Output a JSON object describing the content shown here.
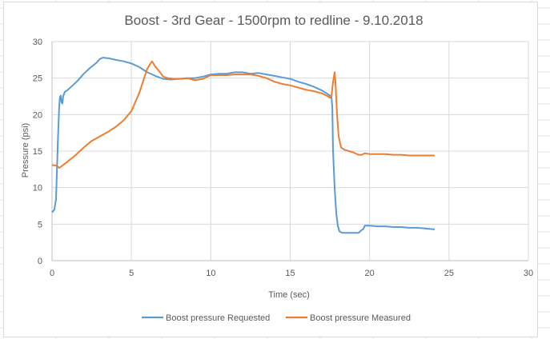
{
  "chart_data": {
    "type": "line",
    "title": "Boost - 3rd Gear - 1500rpm to redline - 9.10.2018",
    "xlabel": "Time (sec)",
    "ylabel": "Pressure (psi)",
    "xlim": [
      0,
      30
    ],
    "ylim": [
      0,
      30
    ],
    "x_ticks": [
      "0",
      "5",
      "10",
      "15",
      "20",
      "25",
      "30"
    ],
    "y_ticks": [
      "0",
      "5",
      "10",
      "15",
      "20",
      "25",
      "30"
    ],
    "grid": true,
    "legend_position": "bottom",
    "series": [
      {
        "name": "Boost pressure Requested",
        "color": "#5b9bd5",
        "points": [
          [
            0,
            6.6
          ],
          [
            0.15,
            7.0
          ],
          [
            0.25,
            8.5
          ],
          [
            0.32,
            13
          ],
          [
            0.38,
            17
          ],
          [
            0.45,
            21
          ],
          [
            0.5,
            22.4
          ],
          [
            0.55,
            22.6
          ],
          [
            0.6,
            21.7
          ],
          [
            0.65,
            21.5
          ],
          [
            0.7,
            22.5
          ],
          [
            0.8,
            23.1
          ],
          [
            1.0,
            23.4
          ],
          [
            1.3,
            24.0
          ],
          [
            1.6,
            24.6
          ],
          [
            2.0,
            25.6
          ],
          [
            2.4,
            26.4
          ],
          [
            2.8,
            27.1
          ],
          [
            3.0,
            27.6
          ],
          [
            3.2,
            27.8
          ],
          [
            3.6,
            27.7
          ],
          [
            4.0,
            27.5
          ],
          [
            4.5,
            27.3
          ],
          [
            5.0,
            27.0
          ],
          [
            5.5,
            26.5
          ],
          [
            6.0,
            25.8
          ],
          [
            6.5,
            25.3
          ],
          [
            7.0,
            24.9
          ],
          [
            7.5,
            24.8
          ],
          [
            8.0,
            24.9
          ],
          [
            8.5,
            25.0
          ],
          [
            9.0,
            25.0
          ],
          [
            9.5,
            25.2
          ],
          [
            10.0,
            25.5
          ],
          [
            10.5,
            25.6
          ],
          [
            11.0,
            25.6
          ],
          [
            11.5,
            25.8
          ],
          [
            12.0,
            25.8
          ],
          [
            12.5,
            25.6
          ],
          [
            13.0,
            25.7
          ],
          [
            13.5,
            25.5
          ],
          [
            14.0,
            25.3
          ],
          [
            14.5,
            25.1
          ],
          [
            15.0,
            24.9
          ],
          [
            15.5,
            24.5
          ],
          [
            16.0,
            24.2
          ],
          [
            16.5,
            23.8
          ],
          [
            17.0,
            23.3
          ],
          [
            17.3,
            22.9
          ],
          [
            17.5,
            22.6
          ],
          [
            17.6,
            22.3
          ],
          [
            17.65,
            21.0
          ],
          [
            17.7,
            15
          ],
          [
            17.8,
            10
          ],
          [
            17.9,
            6.5
          ],
          [
            18.0,
            4.8
          ],
          [
            18.1,
            4.0
          ],
          [
            18.3,
            3.8
          ],
          [
            18.8,
            3.8
          ],
          [
            19.3,
            3.8
          ],
          [
            19.5,
            4.2
          ],
          [
            19.6,
            4.3
          ],
          [
            19.7,
            4.8
          ],
          [
            20.0,
            4.8
          ],
          [
            20.5,
            4.7
          ],
          [
            21.0,
            4.7
          ],
          [
            21.5,
            4.6
          ],
          [
            22.0,
            4.6
          ],
          [
            22.5,
            4.5
          ],
          [
            23.0,
            4.5
          ],
          [
            23.5,
            4.4
          ],
          [
            24.0,
            4.3
          ],
          [
            24.1,
            4.3
          ]
        ]
      },
      {
        "name": "Boost pressure Measured",
        "color": "#ed7d31",
        "points": [
          [
            0,
            13.1
          ],
          [
            0.3,
            13.0
          ],
          [
            0.45,
            12.7
          ],
          [
            0.7,
            13.1
          ],
          [
            1.0,
            13.6
          ],
          [
            1.5,
            14.5
          ],
          [
            2.0,
            15.5
          ],
          [
            2.5,
            16.4
          ],
          [
            3.0,
            17.0
          ],
          [
            3.5,
            17.6
          ],
          [
            4.0,
            18.3
          ],
          [
            4.5,
            19.2
          ],
          [
            5.0,
            20.5
          ],
          [
            5.5,
            23.0
          ],
          [
            5.8,
            25.0
          ],
          [
            6.0,
            26.3
          ],
          [
            6.2,
            27.0
          ],
          [
            6.3,
            27.3
          ],
          [
            6.5,
            26.6
          ],
          [
            6.8,
            25.8
          ],
          [
            7.0,
            25.2
          ],
          [
            7.3,
            25.0
          ],
          [
            7.7,
            24.9
          ],
          [
            8.2,
            24.9
          ],
          [
            8.5,
            25.0
          ],
          [
            9.0,
            24.7
          ],
          [
            9.5,
            24.9
          ],
          [
            10.0,
            25.4
          ],
          [
            10.5,
            25.4
          ],
          [
            11.0,
            25.4
          ],
          [
            11.5,
            25.5
          ],
          [
            12.0,
            25.5
          ],
          [
            12.5,
            25.5
          ],
          [
            13.0,
            25.3
          ],
          [
            13.5,
            25.0
          ],
          [
            14.0,
            24.5
          ],
          [
            14.5,
            24.2
          ],
          [
            15.0,
            24.0
          ],
          [
            15.5,
            23.7
          ],
          [
            16.0,
            23.4
          ],
          [
            16.5,
            23.2
          ],
          [
            17.0,
            22.9
          ],
          [
            17.3,
            22.6
          ],
          [
            17.5,
            22.3
          ],
          [
            17.6,
            22.5
          ],
          [
            17.7,
            24.5
          ],
          [
            17.8,
            25.8
          ],
          [
            17.85,
            24.5
          ],
          [
            17.95,
            20
          ],
          [
            18.05,
            17
          ],
          [
            18.2,
            15.5
          ],
          [
            18.4,
            15.2
          ],
          [
            18.7,
            15.0
          ],
          [
            19.0,
            14.8
          ],
          [
            19.3,
            14.5
          ],
          [
            19.5,
            14.5
          ],
          [
            19.7,
            14.7
          ],
          [
            20.0,
            14.6
          ],
          [
            20.5,
            14.6
          ],
          [
            21.0,
            14.6
          ],
          [
            21.5,
            14.5
          ],
          [
            22.0,
            14.5
          ],
          [
            22.5,
            14.4
          ],
          [
            23.0,
            14.4
          ],
          [
            23.5,
            14.4
          ],
          [
            24.0,
            14.4
          ],
          [
            24.1,
            14.4
          ]
        ]
      }
    ]
  }
}
